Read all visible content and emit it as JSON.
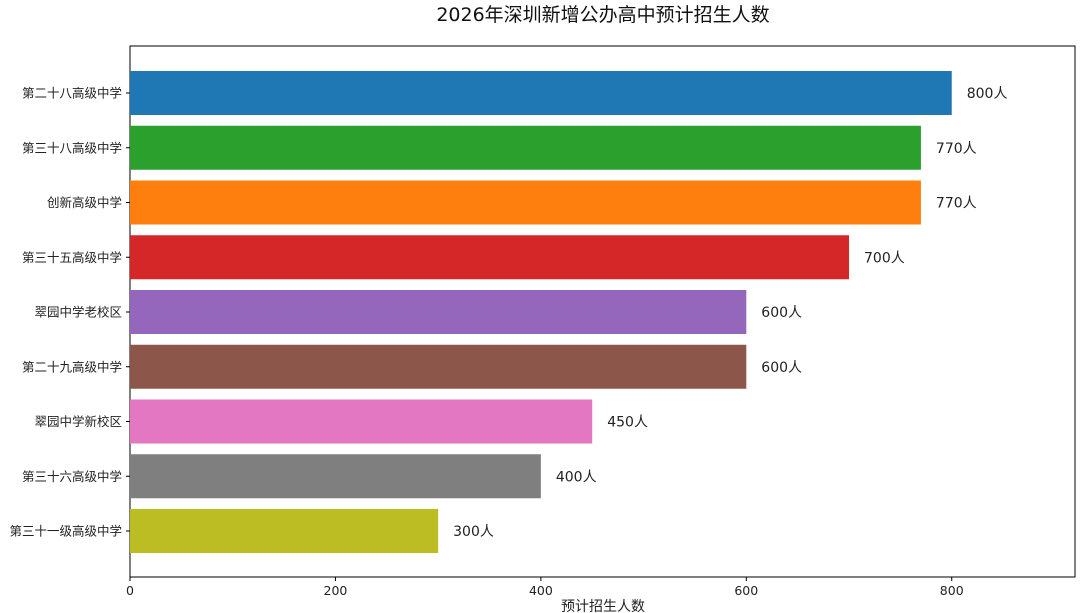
{
  "chart_data": {
    "type": "bar",
    "orientation": "horizontal",
    "title": "2026年深圳新增公办高中预计招生人数",
    "xlabel": "预计招生人数",
    "ylabel": "",
    "xlim": [
      0,
      920
    ],
    "xticks": [
      0,
      200,
      400,
      600,
      800
    ],
    "xtick_labels": [
      "0",
      "200",
      "400",
      "600",
      "800"
    ],
    "grid": false,
    "categories": [
      "第二十八高级中学",
      "第三十八高级中学",
      "创新高级中学",
      "第三十五高级中学",
      "翠园中学老校区",
      "第二十九高级中学",
      "翠园中学新校区",
      "第三十六高级中学",
      "第三十一级高级中学"
    ],
    "values": [
      800,
      770,
      770,
      700,
      600,
      600,
      450,
      400,
      300
    ],
    "value_labels": [
      "800人",
      "770人",
      "770人",
      "700人",
      "600人",
      "600人",
      "450人",
      "400人",
      "300人"
    ],
    "colors": [
      "#1f77b4",
      "#2ca02c",
      "#ff7f0e",
      "#d62728",
      "#9467bd",
      "#8c564b",
      "#e377c2",
      "#7f7f7f",
      "#bcbd22"
    ]
  }
}
